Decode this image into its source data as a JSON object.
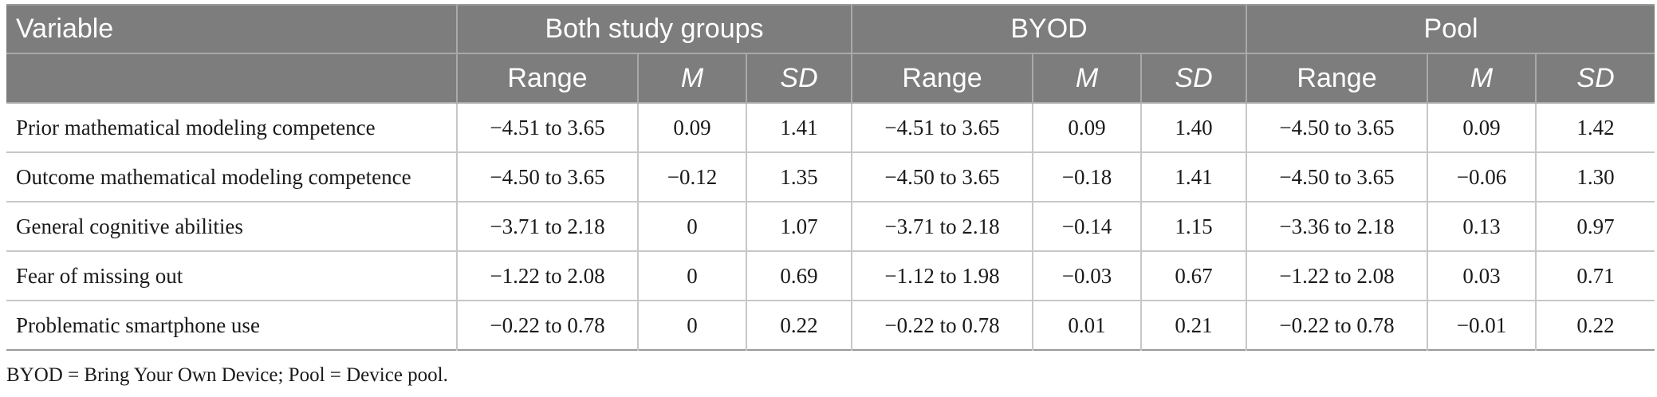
{
  "header": {
    "variable": "Variable",
    "groups": [
      "Both study groups",
      "BYOD",
      "Pool"
    ],
    "sub": [
      "Range",
      "M",
      "SD"
    ]
  },
  "rows": [
    {
      "label": "Prior mathematical modeling competence",
      "cells": [
        "−4.51 to 3.65",
        "0.09",
        "1.41",
        "−4.51 to 3.65",
        "0.09",
        "1.40",
        "−4.50 to 3.65",
        "0.09",
        "1.42"
      ]
    },
    {
      "label": "Outcome mathematical modeling competence",
      "cells": [
        "−4.50 to 3.65",
        "−0.12",
        "1.35",
        "−4.50 to 3.65",
        "−0.18",
        "1.41",
        "−4.50 to 3.65",
        "−0.06",
        "1.30"
      ]
    },
    {
      "label": "General cognitive abilities",
      "cells": [
        "−3.71 to 2.18",
        "0",
        "1.07",
        "−3.71 to 2.18",
        "−0.14",
        "1.15",
        "−3.36 to 2.18",
        "0.13",
        "0.97"
      ]
    },
    {
      "label": "Fear of missing out",
      "cells": [
        "−1.22 to 2.08",
        "0",
        "0.69",
        "−1.12 to 1.98",
        "−0.03",
        "0.67",
        "−1.22 to 2.08",
        "0.03",
        "0.71"
      ]
    },
    {
      "label": "Problematic smartphone use",
      "cells": [
        "−0.22 to 0.78",
        "0",
        "0.22",
        "−0.22 to 0.78",
        "0.01",
        "0.21",
        "−0.22 to 0.78",
        "−0.01",
        "0.22"
      ]
    }
  ],
  "footnote": "BYOD = Bring Your Own Device; Pool = Device pool."
}
